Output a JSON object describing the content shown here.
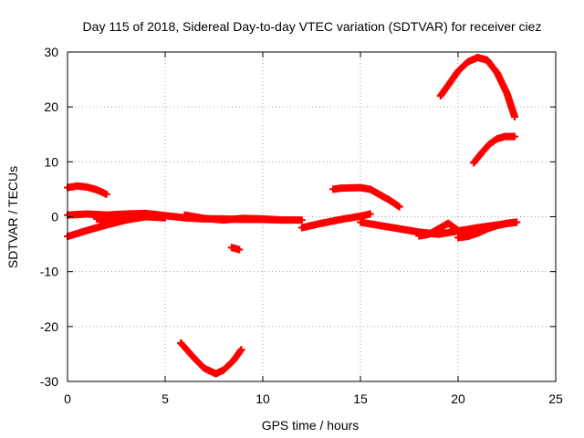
{
  "chart_data": {
    "type": "scatter",
    "title": "Day 115 of 2018, Sidereal Day-to-day VTEC variation (SDTVAR) for receiver ciez",
    "xlabel": "GPS time / hours",
    "ylabel": "SDTVAR / TECUs",
    "xlim": [
      0,
      25
    ],
    "ylim": [
      -30,
      30
    ],
    "xticks": [
      0,
      5,
      10,
      15,
      20,
      25
    ],
    "yticks": [
      -30,
      -20,
      -10,
      0,
      10,
      20,
      30
    ],
    "xtick_labels": [
      "0",
      "5",
      "10",
      "15",
      "20",
      "25"
    ],
    "ytick_labels": [
      "-30",
      "-20",
      "-10",
      "0",
      "10",
      "20",
      "30"
    ],
    "grid": true,
    "marker": "plus",
    "series_color": "#ff0000",
    "series": [
      {
        "name": "arc-1",
        "x": [
          0.0,
          0.5,
          1.0,
          1.5,
          2.0
        ],
        "y": [
          5.3,
          5.6,
          5.4,
          4.9,
          4.1
        ]
      },
      {
        "name": "arc-2",
        "x": [
          0.0,
          1.0,
          2.0,
          3.0,
          4.0,
          5.0,
          6.0,
          7.0,
          8.0,
          9.0,
          10.0,
          11.0,
          12.0
        ],
        "y": [
          0.3,
          0.5,
          0.3,
          0.5,
          0.6,
          0.2,
          -0.2,
          -0.4,
          -0.4,
          -0.5,
          -0.5,
          -0.6,
          -0.6
        ]
      },
      {
        "name": "arc-3",
        "x": [
          0.0,
          1.0,
          2.0,
          3.0,
          4.0
        ],
        "y": [
          -3.6,
          -2.5,
          -1.5,
          -0.6,
          0.0
        ]
      },
      {
        "name": "arc-4",
        "x": [
          1.5,
          2.0,
          3.0,
          4.0,
          5.0
        ],
        "y": [
          -0.4,
          -0.6,
          -0.2,
          0.0,
          -0.2
        ]
      },
      {
        "name": "arc-5",
        "x": [
          6.0,
          7.0,
          8.0,
          9.0,
          10.0,
          11.0
        ],
        "y": [
          0.3,
          -0.3,
          -0.6,
          -0.3,
          -0.4,
          -0.6
        ]
      },
      {
        "name": "arc-6",
        "x": [
          8.4,
          8.6,
          8.8
        ],
        "y": [
          -5.6,
          -5.8,
          -6.0
        ]
      },
      {
        "name": "arc-7",
        "x": [
          5.8,
          6.5,
          7.0,
          7.6,
          8.0,
          8.5,
          8.9
        ],
        "y": [
          -23.0,
          -25.8,
          -27.6,
          -28.6,
          -27.9,
          -26.2,
          -24.2
        ]
      },
      {
        "name": "arc-8",
        "x": [
          12.0,
          13.0,
          14.0,
          15.0,
          15.5
        ],
        "y": [
          -2.0,
          -1.2,
          -0.5,
          0.1,
          0.5
        ]
      },
      {
        "name": "arc-9",
        "x": [
          13.6,
          14.0,
          15.0,
          15.5,
          16.0,
          16.5,
          17.0
        ],
        "y": [
          5.0,
          5.2,
          5.3,
          5.0,
          4.0,
          3.0,
          1.8
        ]
      },
      {
        "name": "arc-10",
        "x": [
          15.0,
          16.0,
          17.0,
          18.0,
          19.0,
          20.0,
          21.0,
          22.0,
          23.0
        ],
        "y": [
          -1.0,
          -1.6,
          -2.2,
          -2.8,
          -3.2,
          -2.6,
          -2.0,
          -1.5,
          -1.0
        ]
      },
      {
        "name": "arc-11",
        "x": [
          18.0,
          18.5,
          19.0,
          19.5,
          20.0,
          20.5,
          21.0,
          21.5
        ],
        "y": [
          -3.5,
          -3.2,
          -2.2,
          -1.2,
          -2.5,
          -3.5,
          -2.7,
          -1.8
        ]
      },
      {
        "name": "arc-12",
        "x": [
          20.0,
          20.5,
          21.0,
          21.5,
          22.0,
          22.5,
          23.0
        ],
        "y": [
          -3.8,
          -3.6,
          -3.0,
          -2.2,
          -1.6,
          -1.2,
          -1.0
        ]
      },
      {
        "name": "arc-13",
        "x": [
          19.1,
          19.5,
          20.0,
          20.5,
          21.0,
          21.5,
          22.0,
          22.5,
          22.9
        ],
        "y": [
          22.0,
          24.0,
          26.5,
          28.2,
          29.0,
          28.5,
          26.2,
          22.5,
          18.2
        ]
      },
      {
        "name": "arc-14",
        "x": [
          20.8,
          21.2,
          21.6,
          22.0,
          22.4,
          22.9
        ],
        "y": [
          9.8,
          11.6,
          13.2,
          14.2,
          14.6,
          14.6
        ]
      }
    ]
  }
}
